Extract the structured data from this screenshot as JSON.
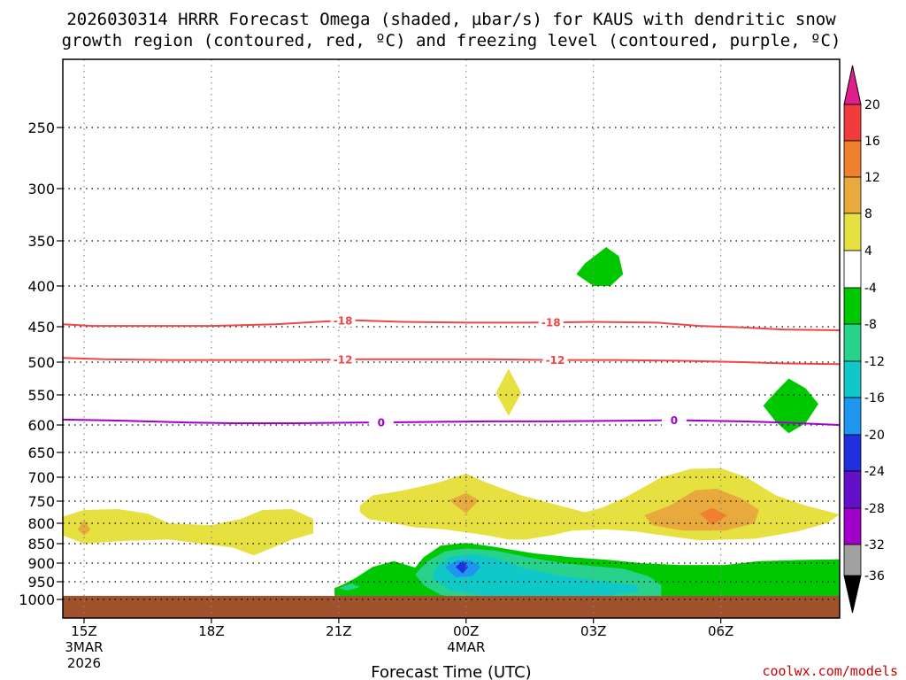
{
  "chart_data": {
    "type": "heatmap",
    "title_lines": [
      "2026030314 HRRR Forecast Omega (shaded, µbar/s) for KAUS with dendritic snow",
      "growth region (contoured, red, ºC) and freezing level (contoured, purple, ºC)"
    ],
    "xlabel": "Forecast Time (UTC)",
    "credit": "coolwx.com/models",
    "x_range_hours": [
      14.5,
      32.8
    ],
    "x_ticks": [
      {
        "hour": 15,
        "lines": [
          "15Z",
          "3MAR",
          "2026"
        ]
      },
      {
        "hour": 18,
        "lines": [
          "18Z"
        ]
      },
      {
        "hour": 21,
        "lines": [
          "21Z"
        ]
      },
      {
        "hour": 24,
        "lines": [
          "00Z",
          "4MAR"
        ]
      },
      {
        "hour": 27,
        "lines": [
          "03Z"
        ]
      },
      {
        "hour": 30,
        "lines": [
          "06Z"
        ]
      }
    ],
    "y_axis": "pressure_hPa",
    "y_range": [
      1025,
      200
    ],
    "y_ticks": [
      250,
      300,
      350,
      400,
      450,
      500,
      550,
      600,
      650,
      700,
      750,
      800,
      850,
      900,
      950,
      1000
    ],
    "ground_below_hPa": 1000,
    "colorbar": {
      "labels": [
        "20",
        "16",
        "12",
        "8",
        "4",
        "-4",
        "-8",
        "-12",
        "-16",
        "-20",
        "-24",
        "-28",
        "-32",
        "-36"
      ],
      "bins": [
        {
          "range": [
            16,
            20
          ],
          "color": "#f03c3c"
        },
        {
          "range": [
            12,
            16
          ],
          "color": "#f08030"
        },
        {
          "range": [
            8,
            12
          ],
          "color": "#e8aa3c"
        },
        {
          "range": [
            4,
            8
          ],
          "color": "#e6e040"
        },
        {
          "range": [
            -4,
            4
          ],
          "color": "#ffffff"
        },
        {
          "range": [
            -8,
            -4
          ],
          "color": "#00c800"
        },
        {
          "range": [
            -12,
            -8
          ],
          "color": "#28d28c"
        },
        {
          "range": [
            -16,
            -12
          ],
          "color": "#10c8c8"
        },
        {
          "range": [
            -20,
            -16
          ],
          "color": "#1e96f0"
        },
        {
          "range": [
            -24,
            -20
          ],
          "color": "#2030e0"
        },
        {
          "range": [
            -28,
            -24
          ],
          "color": "#6410c8"
        },
        {
          "range": [
            -32,
            -28
          ],
          "color": "#a000c8"
        },
        {
          "range": [
            -36,
            -32
          ],
          "color": "#a0a0a0"
        }
      ],
      "overflow_high_color": "#e01e8c",
      "overflow_low_color": "#000000"
    },
    "contours": [
      {
        "name": "dendritic-minus18",
        "label": "-18",
        "color": "#f04646",
        "points": [
          [
            14.5,
            447
          ],
          [
            15.2,
            449
          ],
          [
            16.5,
            449
          ],
          [
            18,
            449
          ],
          [
            19.5,
            447
          ],
          [
            20.5,
            444
          ],
          [
            21.3,
            442
          ],
          [
            22.5,
            444
          ],
          [
            24,
            445
          ],
          [
            25.5,
            445
          ],
          [
            27,
            444
          ],
          [
            28.5,
            445
          ],
          [
            29.5,
            449
          ],
          [
            30.5,
            451
          ],
          [
            31.5,
            454
          ],
          [
            32.8,
            455
          ]
        ],
        "label_hours": [
          21.1,
          26.0
        ]
      },
      {
        "name": "dendritic-minus12",
        "label": "-12",
        "color": "#f04646",
        "points": [
          [
            14.5,
            494
          ],
          [
            15.5,
            496
          ],
          [
            17,
            497
          ],
          [
            18.5,
            497
          ],
          [
            20,
            497
          ],
          [
            21.5,
            496
          ],
          [
            23,
            496
          ],
          [
            24.5,
            496
          ],
          [
            26,
            497
          ],
          [
            27.5,
            497
          ],
          [
            29,
            498
          ],
          [
            30.5,
            500
          ],
          [
            31.5,
            502
          ],
          [
            32.8,
            503
          ]
        ],
        "label_hours": [
          21.1,
          26.1
        ]
      },
      {
        "name": "freezing-level-0",
        "label": "0",
        "color": "#a000c8",
        "points": [
          [
            14.5,
            591
          ],
          [
            16,
            593
          ],
          [
            17.5,
            596
          ],
          [
            18.5,
            597
          ],
          [
            20,
            597
          ],
          [
            21.5,
            596
          ],
          [
            23,
            595
          ],
          [
            24.5,
            594
          ],
          [
            26,
            594
          ],
          [
            27.5,
            593
          ],
          [
            29,
            592
          ],
          [
            30.5,
            594
          ],
          [
            31.5,
            596
          ],
          [
            32.8,
            600
          ]
        ],
        "label_hours": [
          22.0,
          28.9
        ]
      }
    ],
    "shaded_regions": [
      {
        "name": "omega-plus4-low-left",
        "value": 4,
        "color": "#e6e040",
        "points": [
          [
            14.5,
            785
          ],
          [
            15,
            770
          ],
          [
            15.8,
            768
          ],
          [
            16.5,
            778
          ],
          [
            17,
            800
          ],
          [
            18,
            805
          ],
          [
            18.7,
            790
          ],
          [
            19.2,
            770
          ],
          [
            19.9,
            768
          ],
          [
            20.4,
            790
          ],
          [
            20.4,
            825
          ],
          [
            19.9,
            840
          ],
          [
            19,
            880
          ],
          [
            18.5,
            860
          ],
          [
            17,
            840
          ],
          [
            16,
            843
          ],
          [
            15,
            850
          ],
          [
            14.5,
            830
          ]
        ]
      },
      {
        "name": "omega-plus8-left",
        "value": 8,
        "color": "#e8aa3c",
        "points": [
          [
            15.0,
            793
          ],
          [
            15.15,
            815
          ],
          [
            15.0,
            830
          ],
          [
            14.85,
            815
          ]
        ]
      },
      {
        "name": "omega-plus4-midright",
        "value": 4,
        "color": "#e6e040",
        "points": [
          [
            21.5,
            760
          ],
          [
            21.8,
            738
          ],
          [
            22.5,
            728
          ],
          [
            23.3,
            712
          ],
          [
            24.0,
            693
          ],
          [
            24.5,
            712
          ],
          [
            25.3,
            738
          ],
          [
            26.2,
            760
          ],
          [
            26.8,
            775
          ],
          [
            27.2,
            765
          ],
          [
            27.8,
            740
          ],
          [
            28.6,
            700
          ],
          [
            29.3,
            683
          ],
          [
            30.0,
            682
          ],
          [
            30.6,
            700
          ],
          [
            31.3,
            738
          ],
          [
            32,
            760
          ],
          [
            32.8,
            780
          ],
          [
            32.5,
            800
          ],
          [
            31.8,
            820
          ],
          [
            30.8,
            838
          ],
          [
            29.5,
            842
          ],
          [
            28.8,
            832
          ],
          [
            28.0,
            820
          ],
          [
            27.3,
            815
          ],
          [
            26.5,
            818
          ],
          [
            26.0,
            830
          ],
          [
            25.4,
            840
          ],
          [
            25.0,
            840
          ],
          [
            24.5,
            830
          ],
          [
            23.5,
            815
          ],
          [
            22.8,
            810
          ],
          [
            22.3,
            800
          ],
          [
            21.7,
            790
          ],
          [
            21.5,
            775
          ]
        ]
      },
      {
        "name": "omega-plus8-midA",
        "value": 8,
        "color": "#e8aa3c",
        "points": [
          [
            23.6,
            748
          ],
          [
            24.0,
            733
          ],
          [
            24.3,
            748
          ],
          [
            24.0,
            778
          ]
        ]
      },
      {
        "name": "omega-plus8-midB",
        "value": 8,
        "color": "#e8aa3c",
        "points": [
          [
            28.2,
            782
          ],
          [
            28.8,
            760
          ],
          [
            29.4,
            727
          ],
          [
            29.9,
            724
          ],
          [
            30.5,
            745
          ],
          [
            30.9,
            770
          ],
          [
            30.8,
            800
          ],
          [
            30.1,
            818
          ],
          [
            29.1,
            818
          ],
          [
            28.4,
            805
          ]
        ]
      },
      {
        "name": "omega-plus12-midB",
        "value": 12,
        "color": "#f08030",
        "points": [
          [
            29.5,
            778
          ],
          [
            29.8,
            765
          ],
          [
            30.15,
            782
          ],
          [
            29.8,
            805
          ]
        ]
      },
      {
        "name": "omega-plus4-diamond",
        "value": 4,
        "color": "#e6e040",
        "points": [
          [
            25.0,
            510
          ],
          [
            25.3,
            547
          ],
          [
            25.0,
            585
          ],
          [
            24.7,
            547
          ]
        ]
      },
      {
        "name": "omega-minus4-upper",
        "value": -4,
        "color": "#00c800",
        "points": [
          [
            26.8,
            375
          ],
          [
            27.3,
            357
          ],
          [
            27.6,
            367
          ],
          [
            27.7,
            387
          ],
          [
            27.4,
            400
          ],
          [
            27.0,
            400
          ],
          [
            26.6,
            387
          ]
        ]
      },
      {
        "name": "omega-minus4-right",
        "value": -4,
        "color": "#00c800",
        "points": [
          [
            31.3,
            545
          ],
          [
            31.6,
            525
          ],
          [
            32.0,
            540
          ],
          [
            32.3,
            565
          ],
          [
            32.0,
            597
          ],
          [
            31.6,
            615
          ],
          [
            31.3,
            595
          ],
          [
            31.0,
            568
          ]
        ]
      },
      {
        "name": "omega-minus4-low",
        "value": -4,
        "color": "#00c800",
        "points": [
          [
            20.9,
            1000
          ],
          [
            20.9,
            968
          ],
          [
            21.1,
            958
          ],
          [
            21.4,
            940
          ],
          [
            21.8,
            910
          ],
          [
            22.3,
            895
          ],
          [
            22.8,
            912
          ],
          [
            23.0,
            885
          ],
          [
            23.4,
            855
          ],
          [
            24.0,
            848
          ],
          [
            24.6,
            857
          ],
          [
            25.6,
            875
          ],
          [
            26.5,
            885
          ],
          [
            27.4,
            892
          ],
          [
            28.1,
            900
          ],
          [
            29.0,
            905
          ],
          [
            30.1,
            905
          ],
          [
            30.9,
            895
          ],
          [
            31.8,
            892
          ],
          [
            32.8,
            890
          ],
          [
            32.8,
            1000
          ]
        ]
      },
      {
        "name": "omega-minus4-sliver",
        "value": -4,
        "color": "#00c800",
        "points": [
          [
            15.05,
            994
          ],
          [
            16.2,
            994
          ],
          [
            16.8,
            996
          ],
          [
            15.05,
            996
          ]
        ]
      },
      {
        "name": "omega-minus8-low",
        "value": -8,
        "color": "#28d28c",
        "points": [
          [
            23.1,
            895
          ],
          [
            23.5,
            870
          ],
          [
            24.0,
            862
          ],
          [
            24.7,
            868
          ],
          [
            25.5,
            886
          ],
          [
            26.3,
            900
          ],
          [
            27.0,
            908
          ],
          [
            27.7,
            915
          ],
          [
            28.3,
            935
          ],
          [
            28.6,
            960
          ],
          [
            28.6,
            1000
          ],
          [
            24.0,
            1000
          ],
          [
            23.4,
            987
          ],
          [
            23.0,
            960
          ],
          [
            22.8,
            930
          ]
        ]
      },
      {
        "name": "omega-minus8-nub",
        "value": -8,
        "color": "#28d28c",
        "points": [
          [
            21.0,
            968
          ],
          [
            21.3,
            955
          ],
          [
            21.5,
            965
          ],
          [
            21.2,
            975
          ]
        ]
      },
      {
        "name": "omega-minus12-low",
        "value": -12,
        "color": "#10c8c8",
        "points": [
          [
            23.3,
            910
          ],
          [
            23.6,
            885
          ],
          [
            24.2,
            876
          ],
          [
            24.8,
            890
          ],
          [
            25.3,
            912
          ],
          [
            26.3,
            935
          ],
          [
            27.3,
            950
          ],
          [
            28.0,
            960
          ],
          [
            28.1,
            978
          ],
          [
            27.3,
            990
          ],
          [
            25.8,
            992
          ],
          [
            24.4,
            990
          ],
          [
            23.6,
            972
          ],
          [
            23.2,
            940
          ]
        ]
      },
      {
        "name": "omega-minus16-low",
        "value": -16,
        "color": "#1e96f0",
        "points": [
          [
            23.5,
            910
          ],
          [
            23.8,
            893
          ],
          [
            24.1,
            892
          ],
          [
            24.35,
            910
          ],
          [
            24.15,
            935
          ],
          [
            23.75,
            938
          ]
        ]
      },
      {
        "name": "omega-minus20-low",
        "value": -20,
        "color": "#2030e0",
        "points": [
          [
            23.75,
            910
          ],
          [
            23.93,
            895
          ],
          [
            24.05,
            910
          ],
          [
            23.92,
            928
          ]
        ]
      }
    ]
  }
}
